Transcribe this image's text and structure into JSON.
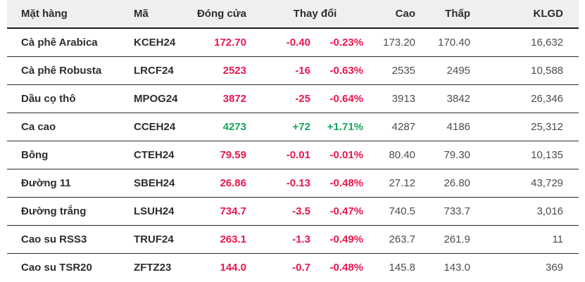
{
  "colors": {
    "down": "#e8174d",
    "up": "#17a45c",
    "header_bg": "#efefef",
    "text_dark": "#2d2d2d",
    "text_gray": "#4d4d4d"
  },
  "table": {
    "headers": {
      "commodity": "Mặt hàng",
      "code": "Mã",
      "close": "Đóng cửa",
      "change": "Thay đổi",
      "high": "Cao",
      "low": "Thấp",
      "volume": "KLGD"
    },
    "rows": [
      {
        "commodity": "Cà phê Arabica",
        "code": "KCEH24",
        "close": "172.70",
        "change_abs": "-0.40",
        "change_pct": "-0.23%",
        "high": "173.20",
        "low": "170.40",
        "volume": "16,632",
        "direction": "down"
      },
      {
        "commodity": "Cà phê Robusta",
        "code": "LRCF24",
        "close": "2523",
        "change_abs": "-16",
        "change_pct": "-0.63%",
        "high": "2535",
        "low": "2495",
        "volume": "10,588",
        "direction": "down"
      },
      {
        "commodity": "Dầu cọ thô",
        "code": "MPOG24",
        "close": "3872",
        "change_abs": "-25",
        "change_pct": "-0.64%",
        "high": "3913",
        "low": "3842",
        "volume": "26,346",
        "direction": "down"
      },
      {
        "commodity": "Ca cao",
        "code": "CCEH24",
        "close": "4273",
        "change_abs": "+72",
        "change_pct": "+1.71%",
        "high": "4287",
        "low": "4186",
        "volume": "25,312",
        "direction": "up"
      },
      {
        "commodity": "Bông",
        "code": "CTEH24",
        "close": "79.59",
        "change_abs": "-0.01",
        "change_pct": "-0.01%",
        "high": "80.40",
        "low": "79.30",
        "volume": "10,135",
        "direction": "down"
      },
      {
        "commodity": "Đường 11",
        "code": "SBEH24",
        "close": "26.86",
        "change_abs": "-0.13",
        "change_pct": "-0.48%",
        "high": "27.12",
        "low": "26.80",
        "volume": "43,729",
        "direction": "down"
      },
      {
        "commodity": "Đường trắng",
        "code": "LSUH24",
        "close": "734.7",
        "change_abs": "-3.5",
        "change_pct": "-0.47%",
        "high": "740.5",
        "low": "733.7",
        "volume": "3,016",
        "direction": "down"
      },
      {
        "commodity": "Cao su RSS3",
        "code": "TRUF24",
        "close": "263.1",
        "change_abs": "-1.3",
        "change_pct": "-0.49%",
        "high": "263.7",
        "low": "261.9",
        "volume": "11",
        "direction": "down"
      },
      {
        "commodity": "Cao su TSR20",
        "code": "ZFTZ23",
        "close": "144.0",
        "change_abs": "-0.7",
        "change_pct": "-0.48%",
        "high": "145.8",
        "low": "143.0",
        "volume": "369",
        "direction": "down"
      }
    ]
  }
}
